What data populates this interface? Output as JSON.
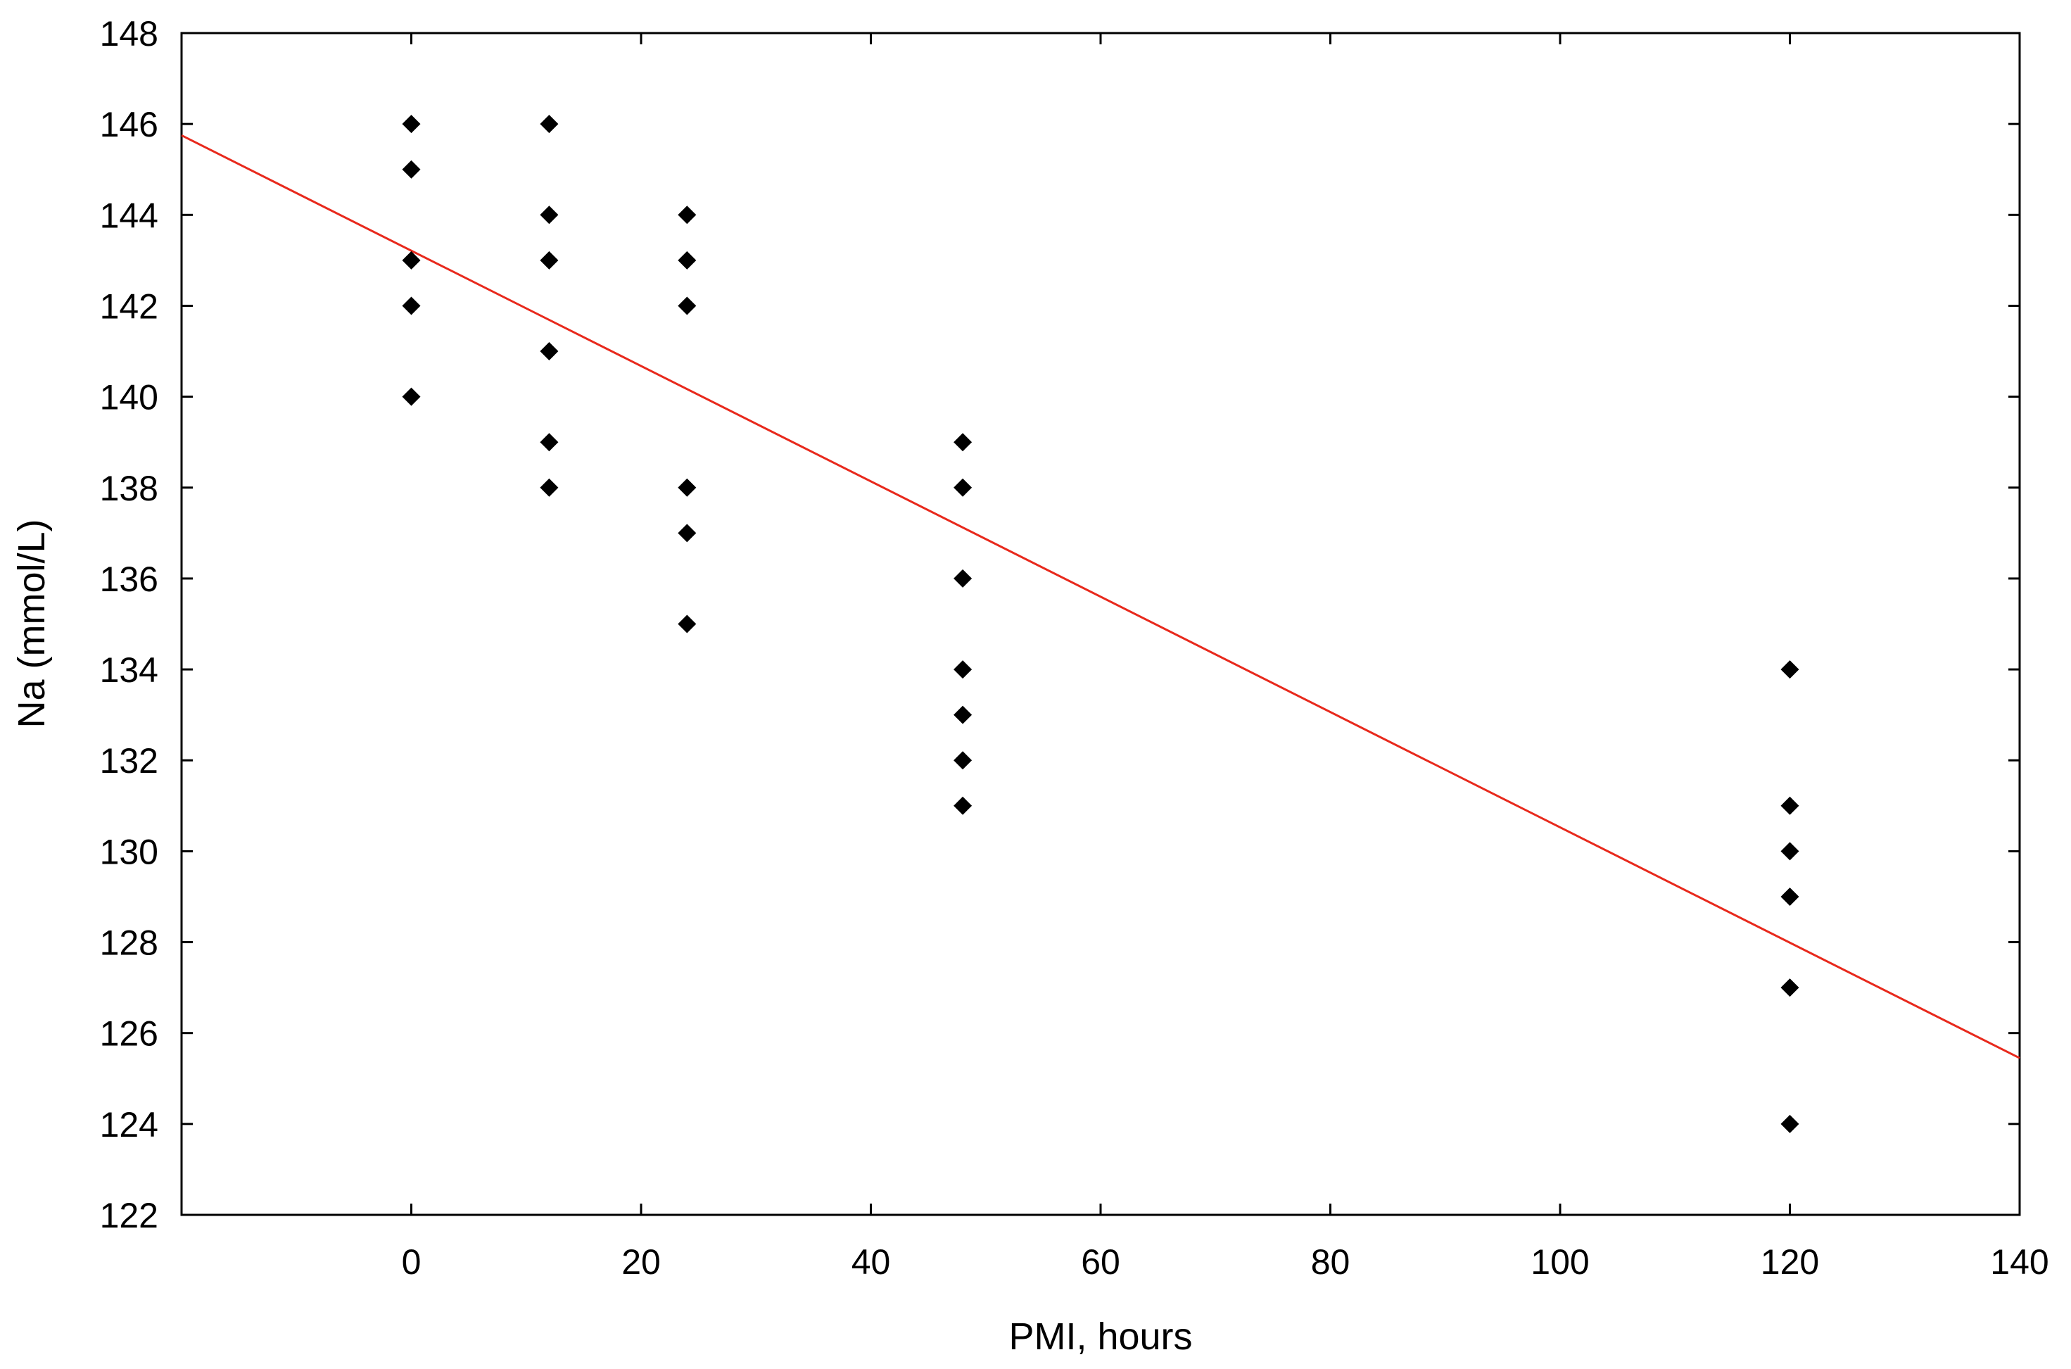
{
  "chart_data": {
    "type": "scatter",
    "title": "",
    "xlabel": "PMI, hours",
    "ylabel": "Na (mmol/L)",
    "xlim": [
      -20,
      140
    ],
    "ylim": [
      122,
      148
    ],
    "x_ticks": [
      0,
      20,
      40,
      60,
      80,
      100,
      120,
      140
    ],
    "y_ticks": [
      122,
      124,
      126,
      128,
      130,
      132,
      134,
      136,
      138,
      140,
      142,
      144,
      146,
      148
    ],
    "grid": false,
    "legend": "none",
    "points": [
      {
        "x": 0,
        "y": 146
      },
      {
        "x": 0,
        "y": 145
      },
      {
        "x": 0,
        "y": 143
      },
      {
        "x": 0,
        "y": 142
      },
      {
        "x": 0,
        "y": 140
      },
      {
        "x": 12,
        "y": 146
      },
      {
        "x": 12,
        "y": 144
      },
      {
        "x": 12,
        "y": 143
      },
      {
        "x": 12,
        "y": 141
      },
      {
        "x": 12,
        "y": 139
      },
      {
        "x": 12,
        "y": 138
      },
      {
        "x": 24,
        "y": 144
      },
      {
        "x": 24,
        "y": 143
      },
      {
        "x": 24,
        "y": 142
      },
      {
        "x": 24,
        "y": 138
      },
      {
        "x": 24,
        "y": 137
      },
      {
        "x": 24,
        "y": 135
      },
      {
        "x": 48,
        "y": 139
      },
      {
        "x": 48,
        "y": 138
      },
      {
        "x": 48,
        "y": 136
      },
      {
        "x": 48,
        "y": 134
      },
      {
        "x": 48,
        "y": 133
      },
      {
        "x": 48,
        "y": 132
      },
      {
        "x": 48,
        "y": 131
      },
      {
        "x": 120,
        "y": 134
      },
      {
        "x": 120,
        "y": 131
      },
      {
        "x": 120,
        "y": 130
      },
      {
        "x": 120,
        "y": 129
      },
      {
        "x": 120,
        "y": 127
      },
      {
        "x": 120,
        "y": 124
      }
    ],
    "regression_line": {
      "x": [
        -20,
        140
      ],
      "y": [
        145.75,
        125.45
      ]
    },
    "colors": {
      "points": "#000000",
      "regression_line": "#e8291c",
      "axes": "#000000"
    }
  }
}
